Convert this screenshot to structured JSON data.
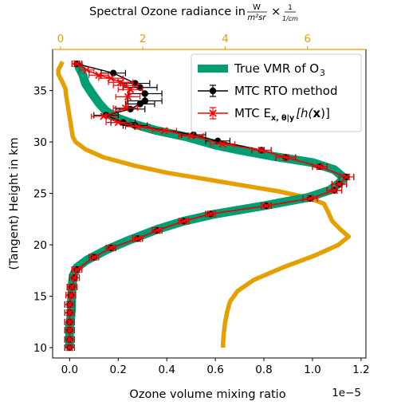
{
  "chart_data": {
    "type": "line",
    "title": "",
    "xlabel": "Ozone volume mixing ratio",
    "x_offset_label": "1e−5",
    "ylabel": "(Tangent) Height in km",
    "top_axis_label": "Spectral Ozone radiance in W/(m²sr) × 1/(1/cm)",
    "top_axis_label_parts": {
      "prefix": "Spectral Ozone radiance in ",
      "frac1_num": "W",
      "frac1_den": "m²sr",
      "times": "×",
      "frac2_num": "1",
      "frac2_den": "1/cm"
    },
    "xlim": [
      -0.07,
      1.22
    ],
    "xscale_note": "x values ×1e−5",
    "ylim": [
      9.0,
      39.0
    ],
    "top_xlim": [
      -0.19,
      7.42
    ],
    "grid": false,
    "legend_position": "top-right",
    "colors": {
      "true_vmr": "#009e73",
      "rto": "#000000",
      "mtc": "#ff0000",
      "radiance": "#e69f00"
    },
    "x_ticks": [
      {
        "value": 0.0,
        "label": "0.0"
      },
      {
        "value": 0.2,
        "label": "0.2"
      },
      {
        "value": 0.4,
        "label": "0.4"
      },
      {
        "value": 0.6,
        "label": "0.6"
      },
      {
        "value": 0.8,
        "label": "0.8"
      },
      {
        "value": 1.0,
        "label": "1.0"
      },
      {
        "value": 1.2,
        "label": "1.2"
      }
    ],
    "y_ticks": [
      {
        "value": 10,
        "label": "10"
      },
      {
        "value": 15,
        "label": "15"
      },
      {
        "value": 20,
        "label": "20"
      },
      {
        "value": 25,
        "label": "25"
      },
      {
        "value": 30,
        "label": "30"
      },
      {
        "value": 35,
        "label": "35"
      }
    ],
    "top_ticks": [
      {
        "value": 0,
        "label": "0"
      },
      {
        "value": 2,
        "label": "2"
      },
      {
        "value": 4,
        "label": "4"
      },
      {
        "value": 6,
        "label": "6"
      }
    ],
    "series": [
      {
        "name": "True VMR of O₃",
        "axis": "bottom",
        "style": "thick-line",
        "points": [
          [
            0.0,
            10.0
          ],
          [
            0.0,
            11.0
          ],
          [
            0.0,
            12.0
          ],
          [
            0.005,
            13.0
          ],
          [
            0.008,
            14.0
          ],
          [
            0.008,
            15.0
          ],
          [
            0.01,
            16.0
          ],
          [
            0.015,
            17.0
          ],
          [
            0.03,
            17.8
          ],
          [
            0.07,
            18.5
          ],
          [
            0.15,
            19.5
          ],
          [
            0.25,
            20.5
          ],
          [
            0.36,
            21.5
          ],
          [
            0.47,
            22.3
          ],
          [
            0.6,
            23.0
          ],
          [
            0.8,
            23.8
          ],
          [
            0.98,
            24.6
          ],
          [
            1.07,
            25.3
          ],
          [
            1.11,
            26.0
          ],
          [
            1.13,
            26.5
          ],
          [
            1.09,
            27.3
          ],
          [
            1.0,
            28.0
          ],
          [
            0.84,
            28.6
          ],
          [
            0.7,
            29.2
          ],
          [
            0.6,
            29.7
          ],
          [
            0.48,
            30.5
          ],
          [
            0.36,
            31.1
          ],
          [
            0.27,
            31.7
          ],
          [
            0.2,
            32.3
          ],
          [
            0.15,
            33.0
          ],
          [
            0.12,
            33.8
          ],
          [
            0.09,
            34.8
          ],
          [
            0.065,
            35.7
          ],
          [
            0.055,
            36.5
          ],
          [
            0.04,
            37.2
          ],
          [
            0.035,
            37.7
          ]
        ]
      },
      {
        "name": "MTC RTO method",
        "axis": "bottom",
        "style": "markers-errorbars",
        "points": [
          {
            "x": 0.0,
            "y": 10.0,
            "xerr": 0.02
          },
          {
            "x": 0.0,
            "y": 10.8,
            "xerr": 0.02
          },
          {
            "x": 0.0,
            "y": 11.7,
            "xerr": 0.02
          },
          {
            "x": 0.0,
            "y": 12.5,
            "xerr": 0.02
          },
          {
            "x": 0.0,
            "y": 13.4,
            "xerr": 0.02
          },
          {
            "x": 0.0,
            "y": 14.2,
            "xerr": 0.02
          },
          {
            "x": 0.005,
            "y": 15.1,
            "xerr": 0.02
          },
          {
            "x": 0.01,
            "y": 15.9,
            "xerr": 0.02
          },
          {
            "x": 0.02,
            "y": 16.8,
            "xerr": 0.02
          },
          {
            "x": 0.03,
            "y": 17.6,
            "xerr": 0.02
          },
          {
            "x": 0.1,
            "y": 18.8,
            "xerr": 0.02
          },
          {
            "x": 0.17,
            "y": 19.7,
            "xerr": 0.02
          },
          {
            "x": 0.28,
            "y": 20.6,
            "xerr": 0.02
          },
          {
            "x": 0.36,
            "y": 21.4,
            "xerr": 0.02
          },
          {
            "x": 0.47,
            "y": 22.3,
            "xerr": 0.02
          },
          {
            "x": 0.58,
            "y": 23.0,
            "xerr": 0.02
          },
          {
            "x": 0.81,
            "y": 23.8,
            "xerr": 0.02
          },
          {
            "x": 0.99,
            "y": 24.5,
            "xerr": 0.03
          },
          {
            "x": 1.09,
            "y": 25.3,
            "xerr": 0.03
          },
          {
            "x": 1.11,
            "y": 25.9,
            "xerr": 0.03
          },
          {
            "x": 1.14,
            "y": 26.6,
            "xerr": 0.03
          },
          {
            "x": 1.03,
            "y": 27.6,
            "xerr": 0.03
          },
          {
            "x": 0.89,
            "y": 28.5,
            "xerr": 0.04
          },
          {
            "x": 0.79,
            "y": 29.2,
            "xerr": 0.04
          },
          {
            "x": 0.61,
            "y": 30.1,
            "xerr": 0.05
          },
          {
            "x": 0.51,
            "y": 30.7,
            "xerr": 0.05
          },
          {
            "x": 0.27,
            "y": 31.6,
            "xerr": 0.05
          },
          {
            "x": 0.22,
            "y": 31.9,
            "xerr": 0.05
          },
          {
            "x": 0.15,
            "y": 32.6,
            "xerr": 0.05
          },
          {
            "x": 0.25,
            "y": 33.2,
            "xerr": 0.06
          },
          {
            "x": 0.29,
            "y": 33.7,
            "xerr": 0.06
          },
          {
            "x": 0.31,
            "y": 34.0,
            "xerr": 0.07
          },
          {
            "x": 0.31,
            "y": 34.7,
            "xerr": 0.07
          },
          {
            "x": 0.29,
            "y": 35.3,
            "xerr": 0.07
          },
          {
            "x": 0.27,
            "y": 35.7,
            "xerr": 0.06
          },
          {
            "x": 0.18,
            "y": 36.7,
            "xerr": 0.05
          },
          {
            "x": 0.03,
            "y": 37.6,
            "xerr": 0.02
          }
        ]
      },
      {
        "name": "MTC E_{x,θ|y}[h(x)]",
        "axis": "bottom",
        "style": "line-markers-errorbars",
        "points": [
          {
            "x": 0.0,
            "y": 10.0,
            "xerr": 0.02
          },
          {
            "x": 0.0,
            "y": 10.8,
            "xerr": 0.02
          },
          {
            "x": 0.0,
            "y": 11.7,
            "xerr": 0.02
          },
          {
            "x": 0.0,
            "y": 12.5,
            "xerr": 0.02
          },
          {
            "x": 0.0,
            "y": 13.4,
            "xerr": 0.02
          },
          {
            "x": 0.0,
            "y": 14.2,
            "xerr": 0.02
          },
          {
            "x": 0.005,
            "y": 15.1,
            "xerr": 0.02
          },
          {
            "x": 0.01,
            "y": 15.9,
            "xerr": 0.02
          },
          {
            "x": 0.02,
            "y": 16.8,
            "xerr": 0.02
          },
          {
            "x": 0.03,
            "y": 17.6,
            "xerr": 0.02
          },
          {
            "x": 0.1,
            "y": 18.8,
            "xerr": 0.02
          },
          {
            "x": 0.17,
            "y": 19.7,
            "xerr": 0.02
          },
          {
            "x": 0.28,
            "y": 20.6,
            "xerr": 0.02
          },
          {
            "x": 0.36,
            "y": 21.4,
            "xerr": 0.02
          },
          {
            "x": 0.47,
            "y": 22.3,
            "xerr": 0.02
          },
          {
            "x": 0.58,
            "y": 23.0,
            "xerr": 0.02
          },
          {
            "x": 0.81,
            "y": 23.8,
            "xerr": 0.02
          },
          {
            "x": 0.99,
            "y": 24.5,
            "xerr": 0.03
          },
          {
            "x": 1.09,
            "y": 25.3,
            "xerr": 0.03
          },
          {
            "x": 1.11,
            "y": 25.9,
            "xerr": 0.03
          },
          {
            "x": 1.14,
            "y": 26.6,
            "xerr": 0.03
          },
          {
            "x": 1.03,
            "y": 27.6,
            "xerr": 0.03
          },
          {
            "x": 0.89,
            "y": 28.5,
            "xerr": 0.04
          },
          {
            "x": 0.79,
            "y": 29.2,
            "xerr": 0.04
          },
          {
            "x": 0.63,
            "y": 29.8,
            "xerr": 0.05
          },
          {
            "x": 0.5,
            "y": 30.6,
            "xerr": 0.05
          },
          {
            "x": 0.39,
            "y": 31.1,
            "xerr": 0.05
          },
          {
            "x": 0.28,
            "y": 31.5,
            "xerr": 0.05
          },
          {
            "x": 0.2,
            "y": 31.9,
            "xerr": 0.05
          },
          {
            "x": 0.14,
            "y": 32.5,
            "xerr": 0.05
          },
          {
            "x": 0.23,
            "y": 33.3,
            "xerr": 0.05
          },
          {
            "x": 0.24,
            "y": 34.4,
            "xerr": 0.05
          },
          {
            "x": 0.25,
            "y": 35.1,
            "xerr": 0.05
          },
          {
            "x": 0.23,
            "y": 35.5,
            "xerr": 0.05
          },
          {
            "x": 0.21,
            "y": 35.8,
            "xerr": 0.05
          },
          {
            "x": 0.17,
            "y": 36.2,
            "xerr": 0.05
          },
          {
            "x": 0.12,
            "y": 36.5,
            "xerr": 0.04
          },
          {
            "x": 0.07,
            "y": 37.0,
            "xerr": 0.03
          },
          {
            "x": 0.03,
            "y": 37.6,
            "xerr": 0.02
          }
        ]
      },
      {
        "name": "",
        "axis": "top",
        "style": "thick-line",
        "points": [
          [
            3.95,
            10.0
          ],
          [
            3.95,
            10.5
          ],
          [
            3.97,
            11.5
          ],
          [
            4.0,
            12.5
          ],
          [
            4.05,
            13.5
          ],
          [
            4.12,
            14.5
          ],
          [
            4.3,
            15.5
          ],
          [
            4.7,
            16.6
          ],
          [
            5.4,
            17.8
          ],
          [
            6.2,
            19.0
          ],
          [
            6.75,
            20.0
          ],
          [
            7.0,
            20.8
          ],
          [
            6.8,
            21.5
          ],
          [
            6.6,
            22.3
          ],
          [
            6.5,
            23.2
          ],
          [
            6.4,
            24.0
          ],
          [
            6.0,
            24.6
          ],
          [
            5.3,
            25.2
          ],
          [
            4.4,
            25.8
          ],
          [
            3.5,
            26.4
          ],
          [
            2.6,
            27.0
          ],
          [
            1.8,
            27.7
          ],
          [
            1.05,
            28.5
          ],
          [
            0.6,
            29.3
          ],
          [
            0.37,
            30.0
          ],
          [
            0.3,
            30.5
          ],
          [
            0.26,
            31.5
          ],
          [
            0.22,
            32.5
          ],
          [
            0.18,
            33.5
          ],
          [
            0.14,
            34.5
          ],
          [
            0.12,
            35.2
          ],
          [
            0.05,
            35.8
          ],
          [
            0.0,
            36.2
          ],
          [
            -0.05,
            36.6
          ],
          [
            -0.05,
            37.0
          ],
          [
            0.0,
            37.4
          ],
          [
            0.05,
            37.8
          ]
        ]
      }
    ],
    "legend": [
      {
        "label": "True VMR of O",
        "sub": "3",
        "symbol": "thick-line"
      },
      {
        "label": "MTC RTO method",
        "symbol": "marker-o"
      },
      {
        "label_parts": [
          "MTC E",
          "x, θ|y",
          "[h(",
          "x",
          ")]"
        ],
        "symbol": "marker-x"
      }
    ]
  }
}
